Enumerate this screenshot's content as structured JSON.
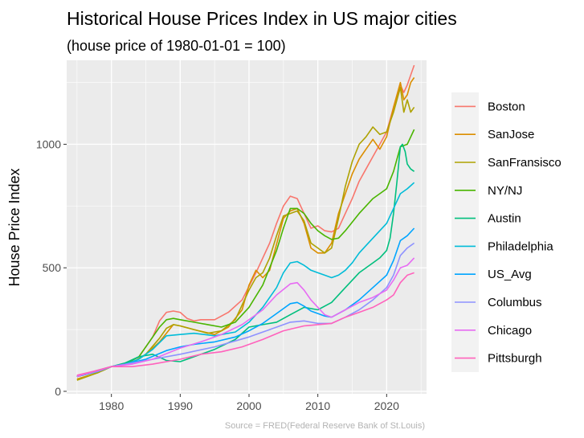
{
  "chart_data": {
    "type": "line",
    "title": "Historical House Prices Index in US major cities",
    "subtitle": "(house price of 1980-01-01 = 100)",
    "xlabel": "",
    "ylabel": "House Price Index",
    "caption": "Source = FRED(Federal Reserve Bank of St.Louis)",
    "xlim": [
      1973.5,
      2025.8
    ],
    "ylim": [
      -10,
      1340
    ],
    "x_ticks": [
      1980,
      1990,
      2000,
      2010,
      2020
    ],
    "x_tick_labels": [
      "1980",
      "1990",
      "2000",
      "2010",
      "2020"
    ],
    "y_ticks": [
      0,
      500,
      1000
    ],
    "y_tick_labels": [
      "0",
      "500",
      "1000"
    ],
    "grid": true,
    "legend_position": "right",
    "series": [
      {
        "name": "Boston",
        "color": "#F8766D",
        "x": [
          1975,
          1978,
          1980,
          1982,
          1984,
          1986,
          1987,
          1988,
          1989,
          1990,
          1991,
          1992,
          1993,
          1995,
          1997,
          1999,
          2001,
          2003,
          2004,
          2005,
          2006,
          2007,
          2008,
          2009,
          2010,
          2011,
          2012,
          2013,
          2014,
          2015,
          2016,
          2017,
          2018,
          2019,
          2020,
          2021,
          2022,
          2022.5,
          2023,
          2023.5,
          2024
        ],
        "y": [
          60,
          85,
          100,
          112,
          140,
          220,
          285,
          320,
          325,
          320,
          295,
          285,
          290,
          290,
          320,
          370,
          480,
          600,
          680,
          750,
          790,
          780,
          720,
          660,
          670,
          650,
          645,
          660,
          720,
          780,
          850,
          900,
          950,
          1000,
          1050,
          1150,
          1240,
          1210,
          1240,
          1280,
          1320
        ]
      },
      {
        "name": "SanJose",
        "color": "#DB8E00",
        "x": [
          1975,
          1978,
          1980,
          1983,
          1985,
          1987,
          1989,
          1990,
          1992,
          1995,
          1997,
          1999,
          2000,
          2001,
          2002,
          2003,
          2005,
          2006,
          2007,
          2008,
          2009,
          2010,
          2011,
          2012,
          2013,
          2014,
          2015,
          2016,
          2017,
          2018,
          2019,
          2020,
          2021,
          2022,
          2022.5,
          2023,
          2023.5,
          2024
        ],
        "y": [
          50,
          75,
          100,
          115,
          150,
          200,
          270,
          265,
          250,
          230,
          260,
          330,
          430,
          490,
          460,
          490,
          700,
          730,
          740,
          680,
          580,
          560,
          560,
          600,
          720,
          800,
          880,
          940,
          980,
          1020,
          980,
          1030,
          1150,
          1250,
          1180,
          1200,
          1250,
          1270
        ]
      },
      {
        "name": "SanFransisco",
        "color": "#AEA200",
        "x": [
          1975,
          1978,
          1980,
          1983,
          1985,
          1987,
          1988,
          1989,
          1990,
          1992,
          1994,
          1996,
          1998,
          2000,
          2001,
          2002,
          2003,
          2004,
          2005,
          2006,
          2007,
          2008,
          2009,
          2010,
          2011,
          2012,
          2013,
          2014,
          2015,
          2016,
          2017,
          2018,
          2019,
          2020,
          2021,
          2022,
          2022.5,
          2023,
          2023.5,
          2024
        ],
        "y": [
          45,
          75,
          100,
          115,
          150,
          215,
          255,
          270,
          265,
          250,
          235,
          245,
          290,
          410,
          460,
          480,
          540,
          630,
          710,
          720,
          730,
          690,
          600,
          580,
          560,
          580,
          700,
          830,
          930,
          1000,
          1030,
          1070,
          1040,
          1050,
          1130,
          1230,
          1130,
          1180,
          1130,
          1150
        ]
      },
      {
        "name": "NY/NJ",
        "color": "#49B500",
        "x": [
          1975,
          1978,
          1980,
          1982,
          1984,
          1986,
          1987,
          1988,
          1989,
          1990,
          1992,
          1994,
          1996,
          1998,
          2000,
          2002,
          2004,
          2005,
          2006,
          2007,
          2008,
          2009,
          2010,
          2011,
          2012,
          2013,
          2014,
          2016,
          2018,
          2019,
          2020,
          2021,
          2022,
          2023,
          2024
        ],
        "y": [
          60,
          80,
          100,
          110,
          140,
          220,
          260,
          290,
          295,
          290,
          280,
          270,
          260,
          280,
          340,
          430,
          570,
          660,
          740,
          740,
          720,
          680,
          650,
          630,
          615,
          620,
          650,
          720,
          780,
          800,
          820,
          890,
          990,
          1000,
          1060
        ]
      },
      {
        "name": "Austin",
        "color": "#00BF7D",
        "x": [
          1975,
          1978,
          1980,
          1982,
          1984,
          1986,
          1988,
          1990,
          1992,
          1995,
          1998,
          2000,
          2002,
          2004,
          2006,
          2008,
          2010,
          2012,
          2014,
          2016,
          2018,
          2019,
          2020,
          2020.5,
          2021,
          2021.5,
          2022,
          2022.3,
          2022.7,
          2023,
          2023.5,
          2024
        ],
        "y": [
          60,
          80,
          100,
          115,
          140,
          150,
          125,
          120,
          140,
          170,
          210,
          260,
          270,
          280,
          310,
          340,
          330,
          360,
          420,
          480,
          520,
          540,
          570,
          620,
          720,
          850,
          990,
          1000,
          970,
          920,
          900,
          890
        ]
      },
      {
        "name": "Philadelphia",
        "color": "#00BCD8",
        "x": [
          1975,
          1978,
          1980,
          1982,
          1984,
          1986,
          1988,
          1990,
          1992,
          1995,
          1998,
          2000,
          2002,
          2004,
          2005,
          2006,
          2007,
          2008,
          2009,
          2010,
          2011,
          2012,
          2013,
          2014,
          2015,
          2016,
          2017,
          2018,
          2019,
          2020,
          2021,
          2022,
          2023,
          2024
        ],
        "y": [
          60,
          85,
          100,
          110,
          130,
          170,
          225,
          230,
          235,
          225,
          240,
          280,
          340,
          420,
          480,
          520,
          525,
          510,
          490,
          480,
          470,
          460,
          470,
          490,
          520,
          560,
          590,
          620,
          650,
          680,
          740,
          800,
          820,
          845
        ]
      },
      {
        "name": "US_Avg",
        "color": "#00A5FF",
        "x": [
          1975,
          1978,
          1980,
          1982,
          1985,
          1988,
          1990,
          1992,
          1995,
          1998,
          2000,
          2002,
          2004,
          2006,
          2007,
          2008,
          2009,
          2010,
          2011,
          2012,
          2014,
          2016,
          2018,
          2020,
          2021,
          2022,
          2023,
          2024
        ],
        "y": [
          60,
          80,
          100,
          110,
          130,
          165,
          180,
          190,
          200,
          220,
          245,
          275,
          315,
          355,
          360,
          345,
          325,
          315,
          305,
          300,
          330,
          370,
          420,
          470,
          530,
          610,
          630,
          660
        ]
      },
      {
        "name": "Columbus",
        "color": "#8E92FF",
        "x": [
          1975,
          1978,
          1980,
          1983,
          1986,
          1990,
          1995,
          2000,
          2003,
          2006,
          2008,
          2010,
          2012,
          2014,
          2016,
          2018,
          2020,
          2021,
          2022,
          2023,
          2024
        ],
        "y": [
          62,
          80,
          100,
          115,
          130,
          150,
          180,
          220,
          250,
          280,
          285,
          275,
          275,
          300,
          330,
          370,
          420,
          470,
          550,
          580,
          600
        ]
      },
      {
        "name": "Chicago",
        "color": "#E76BF3",
        "x": [
          1975,
          1978,
          1980,
          1983,
          1986,
          1990,
          1993,
          1996,
          1999,
          2002,
          2004,
          2006,
          2007,
          2008,
          2009,
          2010,
          2011,
          2012,
          2014,
          2016,
          2018,
          2020,
          2021,
          2022,
          2023,
          2024
        ],
        "y": [
          60,
          85,
          100,
          110,
          130,
          175,
          200,
          230,
          270,
          330,
          390,
          435,
          440,
          410,
          370,
          340,
          310,
          300,
          330,
          360,
          380,
          410,
          450,
          500,
          510,
          540
        ]
      },
      {
        "name": "Pittsburgh",
        "color": "#FF62BC",
        "x": [
          1975,
          1978,
          1980,
          1983,
          1986,
          1990,
          1993,
          1996,
          1999,
          2002,
          2005,
          2008,
          2010,
          2012,
          2014,
          2016,
          2018,
          2020,
          2021,
          2022,
          2023,
          2024
        ],
        "y": [
          65,
          85,
          100,
          100,
          110,
          130,
          150,
          160,
          180,
          210,
          245,
          265,
          270,
          275,
          300,
          320,
          340,
          370,
          390,
          440,
          470,
          480
        ]
      }
    ]
  }
}
